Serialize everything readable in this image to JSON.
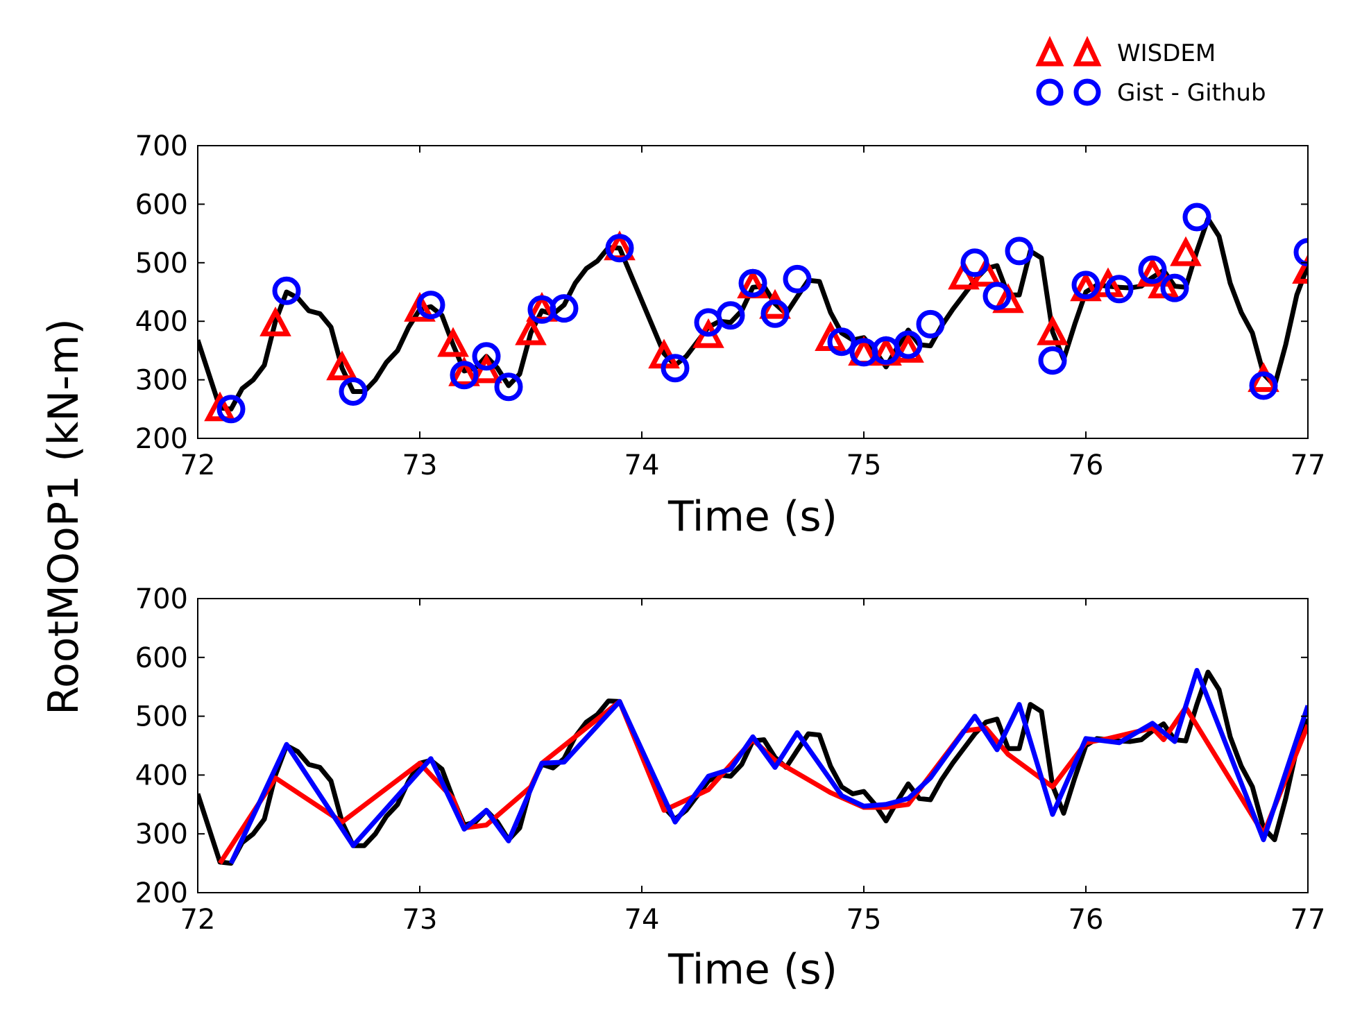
{
  "chart_data": {
    "type": "line",
    "ylabel": "RootMOoP1 (kN-m)",
    "legend": {
      "placement": "top-right",
      "entries": [
        {
          "label": "WISDEM",
          "marker": "triangle",
          "color": "#ff0000"
        },
        {
          "label": "Gist - Github",
          "marker": "circle",
          "color": "#0000ff"
        }
      ]
    },
    "colors": {
      "reference": "#000000",
      "wisdem": "#ff0000",
      "gist": "#0000ff"
    },
    "panels": [
      {
        "xlabel": "Time (s)",
        "xlim": [
          72,
          77
        ],
        "ylim": [
          200,
          700
        ],
        "grid": false,
        "xticks": [
          "72",
          "73",
          "74",
          "75",
          "76",
          "77"
        ],
        "yticks": [
          "200",
          "300",
          "400",
          "500",
          "600",
          "700"
        ],
        "style": "markers"
      },
      {
        "xlabel": "Time (s)",
        "xlim": [
          72,
          77
        ],
        "ylim": [
          200,
          700
        ],
        "grid": false,
        "xticks": [
          "72",
          "73",
          "74",
          "75",
          "76",
          "77"
        ],
        "yticks": [
          "200",
          "300",
          "400",
          "500",
          "600",
          "700"
        ],
        "style": "lines"
      }
    ],
    "series": [
      {
        "key": "reference",
        "x": [
          72,
          72.05,
          72.1,
          72.15,
          72.2,
          72.25,
          72.3,
          72.35,
          72.4,
          72.45,
          72.5,
          72.55,
          72.6,
          72.65,
          72.7,
          72.75,
          72.8,
          72.85,
          72.9,
          72.95,
          73,
          73.05,
          73.1,
          73.15,
          73.2,
          73.25,
          73.3,
          73.35,
          73.4,
          73.45,
          73.5,
          73.55,
          73.6,
          73.65,
          73.7,
          73.75,
          73.8,
          73.85,
          73.9,
          73.95,
          74,
          74.05,
          74.1,
          74.15,
          74.2,
          74.25,
          74.3,
          74.35,
          74.4,
          74.45,
          74.5,
          74.55,
          74.6,
          74.65,
          74.7,
          74.75,
          74.8,
          74.85,
          74.9,
          74.95,
          75,
          75.05,
          75.1,
          75.15,
          75.2,
          75.25,
          75.3,
          75.35,
          75.4,
          75.45,
          75.5,
          75.55,
          75.6,
          75.65,
          75.7,
          75.75,
          75.8,
          75.85,
          75.9,
          75.95,
          76,
          76.05,
          76.1,
          76.15,
          76.2,
          76.25,
          76.3,
          76.35,
          76.4,
          76.45,
          76.5,
          76.55,
          76.6,
          76.65,
          76.7,
          76.75,
          76.8,
          76.85,
          76.9,
          76.95,
          77
        ],
        "y": [
          368,
          310,
          252,
          250,
          285,
          300,
          325,
          400,
          450,
          440,
          418,
          413,
          390,
          320,
          280,
          280,
          300,
          330,
          350,
          390,
          420,
          425,
          410,
          360,
          315,
          320,
          340,
          320,
          290,
          310,
          380,
          418,
          412,
          428,
          465,
          490,
          503,
          526,
          525,
          480,
          435,
          390,
          345,
          325,
          340,
          365,
          390,
          400,
          398,
          418,
          458,
          460,
          430,
          413,
          442,
          470,
          468,
          415,
          380,
          368,
          372,
          350,
          322,
          355,
          385,
          360,
          358,
          392,
          420,
          445,
          470,
          490,
          495,
          445,
          445,
          520,
          508,
          382,
          335,
          395,
          450,
          462,
          460,
          458,
          457,
          460,
          475,
          487,
          460,
          458,
          520,
          575,
          545,
          465,
          415,
          380,
          310,
          290,
          360,
          445,
          495
        ]
      },
      {
        "key": "wisdem",
        "x": [
          72.1,
          72.35,
          72.65,
          73,
          73.15,
          73.2,
          73.3,
          73.5,
          73.55,
          73.9,
          74.1,
          74.3,
          74.5,
          74.6,
          74.85,
          75,
          75.1,
          75.2,
          75.45,
          75.55,
          75.65,
          75.85,
          76,
          76.1,
          76.3,
          76.35,
          76.45,
          76.8,
          77
        ],
        "y": [
          250,
          395,
          320,
          420,
          360,
          310,
          315,
          380,
          420,
          525,
          340,
          375,
          460,
          425,
          370,
          345,
          345,
          350,
          475,
          480,
          435,
          380,
          455,
          462,
          480,
          460,
          515,
          300,
          485
        ]
      },
      {
        "key": "gist",
        "x": [
          72.15,
          72.4,
          72.7,
          73.05,
          73.2,
          73.3,
          73.4,
          73.55,
          73.65,
          73.9,
          74.15,
          74.3,
          74.4,
          74.5,
          74.6,
          74.7,
          74.9,
          75,
          75.1,
          75.2,
          75.3,
          75.5,
          75.6,
          75.7,
          75.85,
          76,
          76.15,
          76.3,
          76.4,
          76.5,
          76.8,
          77
        ],
        "y": [
          250,
          452,
          280,
          428,
          308,
          340,
          288,
          420,
          422,
          525,
          320,
          398,
          410,
          465,
          413,
          472,
          365,
          347,
          350,
          360,
          395,
          500,
          443,
          520,
          333,
          462,
          455,
          488,
          457,
          578,
          290,
          518
        ]
      }
    ]
  }
}
